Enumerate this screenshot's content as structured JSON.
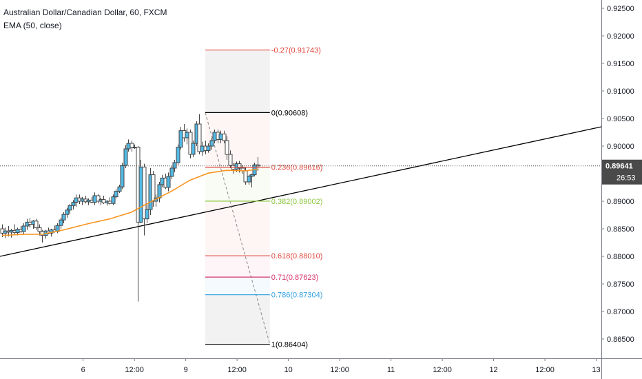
{
  "header": {
    "symbol_title": "Australian Dollar/Canadian Dollar, 60, FXCM",
    "indicator": "EMA (50, close)"
  },
  "price_scale": {
    "ticks": [
      "0.92500",
      "0.92000",
      "0.91500",
      "0.91000",
      "0.90500",
      "0.90000",
      "0.89500",
      "0.89000",
      "0.88500",
      "0.88000",
      "0.87500",
      "0.87000",
      "0.86500"
    ],
    "current_price": "0.89641",
    "countdown": "26:53"
  },
  "time_scale": {
    "ticks": [
      {
        "label": "6",
        "x": 6
      },
      {
        "label": "12:00",
        "x": 6.5
      },
      {
        "label": "9",
        "x": 7
      },
      {
        "label": "12:00",
        "x": 7.5
      },
      {
        "label": "10",
        "x": 8
      },
      {
        "label": "12:00",
        "x": 8.5
      },
      {
        "label": "11",
        "x": 9
      },
      {
        "label": "12:00",
        "x": 9.5
      },
      {
        "label": "12",
        "x": 10
      },
      {
        "label": "12:00",
        "x": 10.5
      },
      {
        "label": "13",
        "x": 11
      }
    ]
  },
  "colors": {
    "up_fill": "#53b9e5",
    "down_fill": "#ffffff",
    "candle_edge": "#444444",
    "ema": "#f7931e",
    "trendline": "#000000",
    "fib_0": "#000000",
    "fib_neg": "#e0463c",
    "fib_236": "#e0463c",
    "fib_382": "#8dc63f",
    "fib_618": "#e0463c",
    "fib_71": "#d6336c",
    "fib_786": "#2f9fe0",
    "fib_1": "#000000",
    "price_label_bg": "#4a4a4a"
  },
  "chart_data": {
    "type": "candlestick",
    "symbol": "AUDCAD",
    "timeframe": "60",
    "ylim": [
      0.8615,
      0.9265
    ],
    "xlim": [
      5.19,
      11.05
    ],
    "candles": [
      {
        "x": 5.21,
        "o": 0.885,
        "h": 0.8858,
        "l": 0.8835,
        "c": 0.8842
      },
      {
        "x": 5.24,
        "o": 0.8842,
        "h": 0.8852,
        "l": 0.8833,
        "c": 0.8846
      },
      {
        "x": 5.27,
        "o": 0.8846,
        "h": 0.8855,
        "l": 0.8836,
        "c": 0.8844
      },
      {
        "x": 5.3,
        "o": 0.8844,
        "h": 0.885,
        "l": 0.8834,
        "c": 0.8847
      },
      {
        "x": 5.33,
        "o": 0.8847,
        "h": 0.8858,
        "l": 0.884,
        "c": 0.8843
      },
      {
        "x": 5.36,
        "o": 0.8843,
        "h": 0.8852,
        "l": 0.8838,
        "c": 0.8849
      },
      {
        "x": 5.39,
        "o": 0.8849,
        "h": 0.8855,
        "l": 0.8842,
        "c": 0.8845
      },
      {
        "x": 5.42,
        "o": 0.8845,
        "h": 0.886,
        "l": 0.884,
        "c": 0.8855
      },
      {
        "x": 5.45,
        "o": 0.8855,
        "h": 0.8868,
        "l": 0.8848,
        "c": 0.8862
      },
      {
        "x": 5.48,
        "o": 0.8862,
        "h": 0.887,
        "l": 0.8852,
        "c": 0.8858
      },
      {
        "x": 5.51,
        "o": 0.8858,
        "h": 0.8866,
        "l": 0.885,
        "c": 0.8864
      },
      {
        "x": 5.54,
        "o": 0.8864,
        "h": 0.8868,
        "l": 0.8848,
        "c": 0.8852
      },
      {
        "x": 5.57,
        "o": 0.8852,
        "h": 0.8858,
        "l": 0.8838,
        "c": 0.8845
      },
      {
        "x": 5.6,
        "o": 0.8845,
        "h": 0.8848,
        "l": 0.8825,
        "c": 0.8838
      },
      {
        "x": 5.63,
        "o": 0.8838,
        "h": 0.8848,
        "l": 0.8832,
        "c": 0.8846
      },
      {
        "x": 5.66,
        "o": 0.8846,
        "h": 0.8852,
        "l": 0.884,
        "c": 0.8842
      },
      {
        "x": 5.69,
        "o": 0.8842,
        "h": 0.885,
        "l": 0.8836,
        "c": 0.8848
      },
      {
        "x": 5.72,
        "o": 0.8848,
        "h": 0.8856,
        "l": 0.8843,
        "c": 0.8845
      },
      {
        "x": 5.75,
        "o": 0.8845,
        "h": 0.886,
        "l": 0.8842,
        "c": 0.8856
      },
      {
        "x": 5.78,
        "o": 0.8856,
        "h": 0.887,
        "l": 0.885,
        "c": 0.8866
      },
      {
        "x": 5.81,
        "o": 0.8866,
        "h": 0.888,
        "l": 0.886,
        "c": 0.8876
      },
      {
        "x": 5.84,
        "o": 0.8876,
        "h": 0.8888,
        "l": 0.887,
        "c": 0.8884
      },
      {
        "x": 5.87,
        "o": 0.8884,
        "h": 0.8895,
        "l": 0.8878,
        "c": 0.8892
      },
      {
        "x": 5.9,
        "o": 0.8892,
        "h": 0.8902,
        "l": 0.8885,
        "c": 0.8898
      },
      {
        "x": 5.93,
        "o": 0.8898,
        "h": 0.8912,
        "l": 0.889,
        "c": 0.8906
      },
      {
        "x": 5.96,
        "o": 0.8906,
        "h": 0.8912,
        "l": 0.8895,
        "c": 0.89
      },
      {
        "x": 5.99,
        "o": 0.89,
        "h": 0.8908,
        "l": 0.8893,
        "c": 0.8904
      },
      {
        "x": 6.02,
        "o": 0.8904,
        "h": 0.891,
        "l": 0.8896,
        "c": 0.8899
      },
      {
        "x": 6.05,
        "o": 0.8899,
        "h": 0.8905,
        "l": 0.8893,
        "c": 0.8902
      },
      {
        "x": 6.08,
        "o": 0.8902,
        "h": 0.8908,
        "l": 0.8896,
        "c": 0.8898
      },
      {
        "x": 6.11,
        "o": 0.8898,
        "h": 0.8916,
        "l": 0.8893,
        "c": 0.891
      },
      {
        "x": 6.14,
        "o": 0.891,
        "h": 0.8913,
        "l": 0.8896,
        "c": 0.89
      },
      {
        "x": 6.17,
        "o": 0.89,
        "h": 0.8906,
        "l": 0.8893,
        "c": 0.8903
      },
      {
        "x": 6.2,
        "o": 0.8903,
        "h": 0.891,
        "l": 0.8895,
        "c": 0.8897
      },
      {
        "x": 6.23,
        "o": 0.8897,
        "h": 0.8902,
        "l": 0.8892,
        "c": 0.89
      },
      {
        "x": 6.26,
        "o": 0.89,
        "h": 0.8907,
        "l": 0.8894,
        "c": 0.8896
      },
      {
        "x": 6.29,
        "o": 0.8896,
        "h": 0.8912,
        "l": 0.8893,
        "c": 0.8908
      },
      {
        "x": 6.32,
        "o": 0.8908,
        "h": 0.8922,
        "l": 0.8905,
        "c": 0.8918
      },
      {
        "x": 6.35,
        "o": 0.8918,
        "h": 0.893,
        "l": 0.8915,
        "c": 0.8926
      },
      {
        "x": 6.38,
        "o": 0.8926,
        "h": 0.897,
        "l": 0.8922,
        "c": 0.8965
      },
      {
        "x": 6.41,
        "o": 0.8965,
        "h": 0.9002,
        "l": 0.896,
        "c": 0.8995
      },
      {
        "x": 6.44,
        "o": 0.8995,
        "h": 0.9012,
        "l": 0.899,
        "c": 0.9005
      },
      {
        "x": 6.47,
        "o": 0.9005,
        "h": 0.901,
        "l": 0.899,
        "c": 0.8998
      },
      {
        "x": 6.5,
        "o": 0.8998,
        "h": 0.9003,
        "l": 0.8995,
        "c": 0.8998
      },
      {
        "x": 6.53,
        "o": 0.8998,
        "h": 0.9,
        "l": 0.8718,
        "c": 0.8862
      },
      {
        "x": 6.56,
        "o": 0.8862,
        "h": 0.8975,
        "l": 0.886,
        "c": 0.8962
      },
      {
        "x": 6.59,
        "o": 0.8962,
        "h": 0.8968,
        "l": 0.8838,
        "c": 0.8868
      },
      {
        "x": 6.62,
        "o": 0.8868,
        "h": 0.8895,
        "l": 0.886,
        "c": 0.8885
      },
      {
        "x": 6.65,
        "o": 0.8885,
        "h": 0.896,
        "l": 0.8875,
        "c": 0.8948
      },
      {
        "x": 6.68,
        "o": 0.8948,
        "h": 0.8955,
        "l": 0.889,
        "c": 0.89
      },
      {
        "x": 6.71,
        "o": 0.89,
        "h": 0.8912,
        "l": 0.889,
        "c": 0.8906
      },
      {
        "x": 6.74,
        "o": 0.8906,
        "h": 0.8935,
        "l": 0.8898,
        "c": 0.893
      },
      {
        "x": 6.77,
        "o": 0.893,
        "h": 0.8948,
        "l": 0.8925,
        "c": 0.8942
      },
      {
        "x": 6.8,
        "o": 0.8942,
        "h": 0.895,
        "l": 0.8922,
        "c": 0.8925
      },
      {
        "x": 6.83,
        "o": 0.8925,
        "h": 0.8952,
        "l": 0.8918,
        "c": 0.8945
      },
      {
        "x": 6.86,
        "o": 0.8945,
        "h": 0.8965,
        "l": 0.894,
        "c": 0.896
      },
      {
        "x": 6.89,
        "o": 0.896,
        "h": 0.8975,
        "l": 0.8953,
        "c": 0.897
      },
      {
        "x": 6.92,
        "o": 0.897,
        "h": 0.9003,
        "l": 0.8965,
        "c": 0.8998
      },
      {
        "x": 6.95,
        "o": 0.8998,
        "h": 0.9035,
        "l": 0.8994,
        "c": 0.9028
      },
      {
        "x": 6.98,
        "o": 0.9028,
        "h": 0.904,
        "l": 0.9008,
        "c": 0.9015
      },
      {
        "x": 7.01,
        "o": 0.9015,
        "h": 0.9032,
        "l": 0.9003,
        "c": 0.9025
      },
      {
        "x": 7.04,
        "o": 0.9025,
        "h": 0.903,
        "l": 0.8978,
        "c": 0.8985
      },
      {
        "x": 7.07,
        "o": 0.8985,
        "h": 0.901,
        "l": 0.898,
        "c": 0.9005
      },
      {
        "x": 7.1,
        "o": 0.9005,
        "h": 0.9045,
        "l": 0.9,
        "c": 0.904
      },
      {
        "x": 7.13,
        "o": 0.904,
        "h": 0.9058,
        "l": 0.8985,
        "c": 0.899
      },
      {
        "x": 7.16,
        "o": 0.899,
        "h": 0.9008,
        "l": 0.8982,
        "c": 0.9
      },
      {
        "x": 7.19,
        "o": 0.9,
        "h": 0.901,
        "l": 0.8985,
        "c": 0.8992
      },
      {
        "x": 7.22,
        "o": 0.8992,
        "h": 0.9005,
        "l": 0.8988,
        "c": 0.9
      },
      {
        "x": 7.25,
        "o": 0.9,
        "h": 0.9015,
        "l": 0.8993,
        "c": 0.901
      },
      {
        "x": 7.28,
        "o": 0.901,
        "h": 0.903,
        "l": 0.9005,
        "c": 0.9025
      },
      {
        "x": 7.31,
        "o": 0.9025,
        "h": 0.903,
        "l": 0.9005,
        "c": 0.9012
      },
      {
        "x": 7.34,
        "o": 0.9012,
        "h": 0.9028,
        "l": 0.9005,
        "c": 0.9022
      },
      {
        "x": 7.37,
        "o": 0.9022,
        "h": 0.9028,
        "l": 0.9005,
        "c": 0.901
      },
      {
        "x": 7.4,
        "o": 0.901,
        "h": 0.9018,
        "l": 0.8975,
        "c": 0.8985
      },
      {
        "x": 7.43,
        "o": 0.8985,
        "h": 0.8992,
        "l": 0.896,
        "c": 0.8965
      },
      {
        "x": 7.46,
        "o": 0.8965,
        "h": 0.897,
        "l": 0.895,
        "c": 0.8958
      },
      {
        "x": 7.49,
        "o": 0.8958,
        "h": 0.8972,
        "l": 0.8953,
        "c": 0.8968
      },
      {
        "x": 7.52,
        "o": 0.8968,
        "h": 0.8973,
        "l": 0.8952,
        "c": 0.896
      },
      {
        "x": 7.55,
        "o": 0.896,
        "h": 0.8965,
        "l": 0.895,
        "c": 0.8955
      },
      {
        "x": 7.58,
        "o": 0.8955,
        "h": 0.8962,
        "l": 0.893,
        "c": 0.8935
      },
      {
        "x": 7.61,
        "o": 0.8935,
        "h": 0.8948,
        "l": 0.893,
        "c": 0.8945
      },
      {
        "x": 7.64,
        "o": 0.8945,
        "h": 0.895,
        "l": 0.8925,
        "c": 0.8948
      },
      {
        "x": 7.67,
        "o": 0.8948,
        "h": 0.897,
        "l": 0.8945,
        "c": 0.8966
      },
      {
        "x": 7.7,
        "o": 0.8966,
        "h": 0.898,
        "l": 0.8955,
        "c": 0.8964
      }
    ],
    "ema_50": [
      [
        5.21,
        0.8838
      ],
      [
        5.45,
        0.884
      ],
      [
        5.6,
        0.884
      ],
      [
        5.81,
        0.8848
      ],
      [
        6.02,
        0.8858
      ],
      [
        6.26,
        0.8868
      ],
      [
        6.47,
        0.888
      ],
      [
        6.65,
        0.8898
      ],
      [
        6.86,
        0.8918
      ],
      [
        7.04,
        0.8938
      ],
      [
        7.22,
        0.8951
      ],
      [
        7.4,
        0.8956
      ],
      [
        7.58,
        0.8955
      ],
      [
        7.7,
        0.8958
      ]
    ],
    "trendline": [
      [
        5.19,
        0.88
      ],
      [
        11.05,
        0.9035
      ]
    ],
    "fib_retracement": {
      "diagonal": [
        [
          7.19,
          0.90608
        ],
        [
          7.82,
          0.86404
        ]
      ],
      "x_start": 7.19,
      "x_end": 7.82,
      "levels": [
        {
          "level": "-0.27",
          "price": 0.91743,
          "label": "-0.27(0.91743)",
          "color": "#e0463c"
        },
        {
          "level": "0",
          "price": 0.90608,
          "label": "0(0.90608)",
          "color": "#000000"
        },
        {
          "level": "0.236",
          "price": 0.89616,
          "label": "0.236(0.89616)",
          "color": "#e0463c"
        },
        {
          "level": "0.382",
          "price": 0.89002,
          "label": "0.382(0.89002)",
          "color": "#8dc63f"
        },
        {
          "level": "0.618",
          "price": 0.8801,
          "label": "0.618(0.88010)",
          "color": "#e0463c"
        },
        {
          "level": "0.71",
          "price": 0.87623,
          "label": "0.71(0.87623)",
          "color": "#d6336c"
        },
        {
          "level": "0.786",
          "price": 0.87304,
          "label": "0.786(0.87304)",
          "color": "#2f9fe0"
        },
        {
          "level": "1",
          "price": 0.86404,
          "label": "1(0.86404)",
          "color": "#000000"
        }
      ]
    },
    "last_price": 0.89641
  }
}
